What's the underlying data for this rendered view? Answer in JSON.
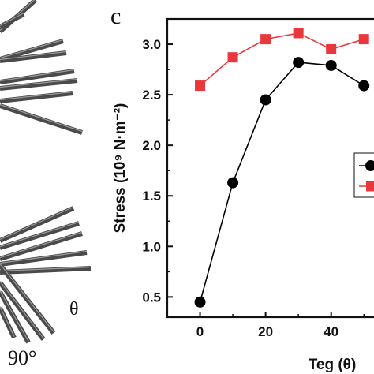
{
  "panel_label": "c",
  "illustration": {
    "theta_symbol": "θ",
    "angle_label": "90°"
  },
  "chart_data": {
    "type": "line",
    "title": "",
    "xlabel": "Teg (θ)",
    "ylabel": "Stress (10⁹ N·m⁻²)",
    "xlim": [
      -10,
      55
    ],
    "ylim": [
      0.3,
      3.25
    ],
    "x_ticks": [
      "0",
      "20",
      "40"
    ],
    "y_ticks": [
      "0.5",
      "1.0",
      "1.5",
      "2.0",
      "2.5",
      "3.0"
    ],
    "series": [
      {
        "color": "#000000",
        "marker": "circle",
        "x": [
          0,
          10,
          20,
          30,
          40,
          50
        ],
        "y": [
          0.45,
          1.63,
          2.45,
          2.82,
          2.79,
          2.59
        ]
      },
      {
        "color": "#e8383d",
        "marker": "square",
        "x": [
          0,
          10,
          20,
          30,
          40,
          50
        ],
        "y": [
          2.59,
          2.87,
          3.05,
          3.11,
          2.95,
          3.05
        ]
      }
    ],
    "legend": "right"
  }
}
